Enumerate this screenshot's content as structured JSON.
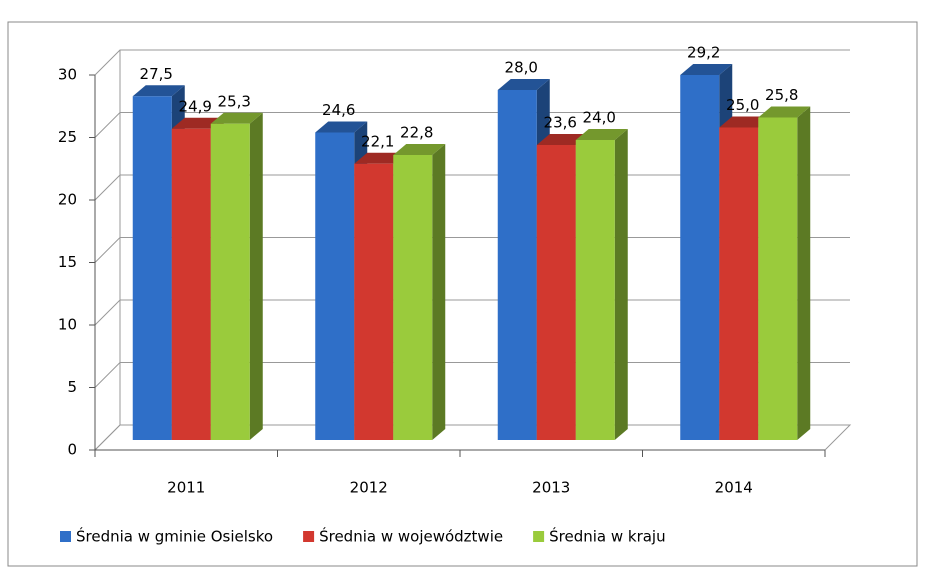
{
  "chart_data": {
    "type": "bar3d",
    "categories": [
      "2011",
      "2012",
      "2013",
      "2014"
    ],
    "series": [
      {
        "name": "Średnia w gminie Osielsko",
        "color": "#2f6fc8",
        "values": [
          27.5,
          24.6,
          28.0,
          29.2
        ],
        "value_labels": [
          "27,5",
          "24,6",
          "28,0",
          "29,2"
        ]
      },
      {
        "name": "Średnia w województwie",
        "color": "#d2382f",
        "values": [
          24.9,
          22.1,
          23.6,
          25.0
        ],
        "value_labels": [
          "24,9",
          "22,1",
          "23,6",
          "25,0"
        ]
      },
      {
        "name": "Średnia w kraju",
        "color": "#9acb3c",
        "values": [
          25.3,
          22.8,
          24.0,
          25.8
        ],
        "value_labels": [
          "25,3",
          "22,8",
          "24,0",
          "25,8"
        ]
      }
    ],
    "ylim": [
      0,
      30
    ],
    "yticks": [
      0,
      5,
      10,
      15,
      20,
      25,
      30
    ],
    "grid": true,
    "legend": "bottom"
  }
}
